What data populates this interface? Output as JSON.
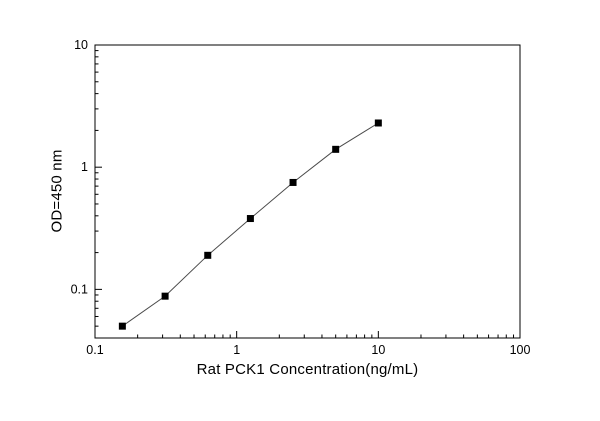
{
  "chart_data": {
    "type": "line",
    "title": "",
    "xlabel": "Rat PCK1 Concentration(ng/mL)",
    "ylabel": "OD=450 nm",
    "xscale": "log",
    "yscale": "log",
    "xlim": [
      0.1,
      100
    ],
    "ylim": [
      0.04,
      10
    ],
    "x": [
      0.156,
      0.3125,
      0.625,
      1.25,
      2.5,
      5,
      10
    ],
    "y": [
      0.05,
      0.088,
      0.19,
      0.38,
      0.75,
      1.4,
      2.3
    ],
    "x_ticks": {
      "values": [
        0.1,
        1,
        10,
        100
      ],
      "labels": [
        "0.1",
        "1",
        "10",
        "100"
      ]
    },
    "y_ticks": {
      "values": [
        0.1,
        1,
        10
      ],
      "labels": [
        "0.1",
        "1",
        "10"
      ]
    },
    "marker": "square",
    "marker_color": "#000000",
    "line_color": "#4a4a4a",
    "frame_color": "#000000",
    "grid": "off",
    "legend": "none"
  }
}
